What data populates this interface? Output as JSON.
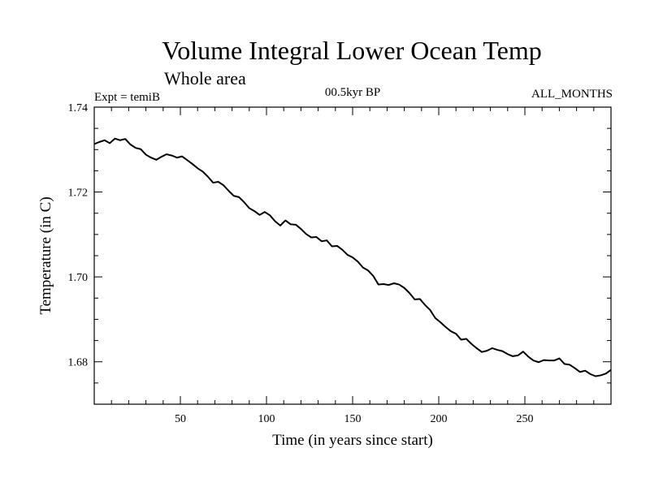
{
  "chart_data": {
    "type": "line",
    "title": "Volume Integral Lower Ocean Temp",
    "subtitle": "Whole area",
    "experiment_label": "Expt = temiB",
    "period_label": "00.5kyr BP",
    "months_label": "ALL_MONTHS",
    "xlabel": "Time (in years since start)",
    "ylabel": "Temperature (in C)",
    "xlim": [
      0,
      300
    ],
    "ylim": [
      1.67,
      1.74
    ],
    "xticks": [
      50,
      100,
      150,
      200,
      250
    ],
    "xtick_labels": [
      "50",
      "100",
      "150",
      "200",
      "250"
    ],
    "yticks": [
      1.68,
      1.7,
      1.72,
      1.74
    ],
    "ytick_labels": [
      "1.68",
      "1.70",
      "1.72",
      "1.74"
    ],
    "series": [
      {
        "name": "temiB",
        "color": "#000000",
        "x": [
          0,
          3,
          6,
          9,
          12,
          15,
          18,
          21,
          24,
          27,
          30,
          33,
          36,
          39,
          42,
          45,
          48,
          51,
          54,
          57,
          60,
          63,
          66,
          69,
          72,
          75,
          78,
          81,
          84,
          87,
          90,
          93,
          96,
          99,
          102,
          105,
          108,
          111,
          114,
          117,
          120,
          123,
          126,
          129,
          132,
          135,
          138,
          141,
          144,
          147,
          150,
          153,
          156,
          159,
          162,
          165,
          168,
          171,
          174,
          177,
          180,
          183,
          186,
          189,
          192,
          195,
          198,
          201,
          204,
          207,
          210,
          213,
          216,
          219,
          222,
          225,
          228,
          231,
          234,
          237,
          240,
          243,
          246,
          249,
          252,
          255,
          258,
          261,
          264,
          267,
          270,
          273,
          276,
          279,
          282,
          285,
          288,
          291,
          294,
          297,
          300
        ],
        "values": [
          1.7313,
          1.7318,
          1.7322,
          1.7315,
          1.7326,
          1.7322,
          1.7325,
          1.7312,
          1.7304,
          1.7301,
          1.7288,
          1.7281,
          1.7276,
          1.7283,
          1.7289,
          1.7286,
          1.7281,
          1.7284,
          1.7275,
          1.7266,
          1.7256,
          1.7248,
          1.7236,
          1.7222,
          1.7224,
          1.7216,
          1.7203,
          1.7191,
          1.7188,
          1.7176,
          1.7162,
          1.7155,
          1.7146,
          1.7153,
          1.7145,
          1.7131,
          1.7121,
          1.7133,
          1.7124,
          1.7123,
          1.7113,
          1.7101,
          1.7093,
          1.7094,
          1.7084,
          1.7086,
          1.7072,
          1.7073,
          1.7064,
          1.7052,
          1.7046,
          1.7036,
          1.7022,
          1.7015,
          1.7002,
          1.6982,
          1.6983,
          1.6981,
          1.6985,
          1.6982,
          1.6974,
          1.6962,
          1.6947,
          1.6948,
          1.6934,
          1.6922,
          1.6903,
          1.6893,
          1.6882,
          1.6872,
          1.6866,
          1.6852,
          1.6854,
          1.6842,
          1.6832,
          1.6823,
          1.6826,
          1.6832,
          1.6828,
          1.6825,
          1.6818,
          1.6813,
          1.6815,
          1.6824,
          1.6812,
          1.6803,
          1.6799,
          1.6804,
          1.6803,
          1.6803,
          1.6808,
          1.6795,
          1.6793,
          1.6785,
          1.6776,
          1.6779,
          1.6771,
          1.6766,
          1.6768,
          1.6772,
          1.6781
        ]
      }
    ]
  }
}
